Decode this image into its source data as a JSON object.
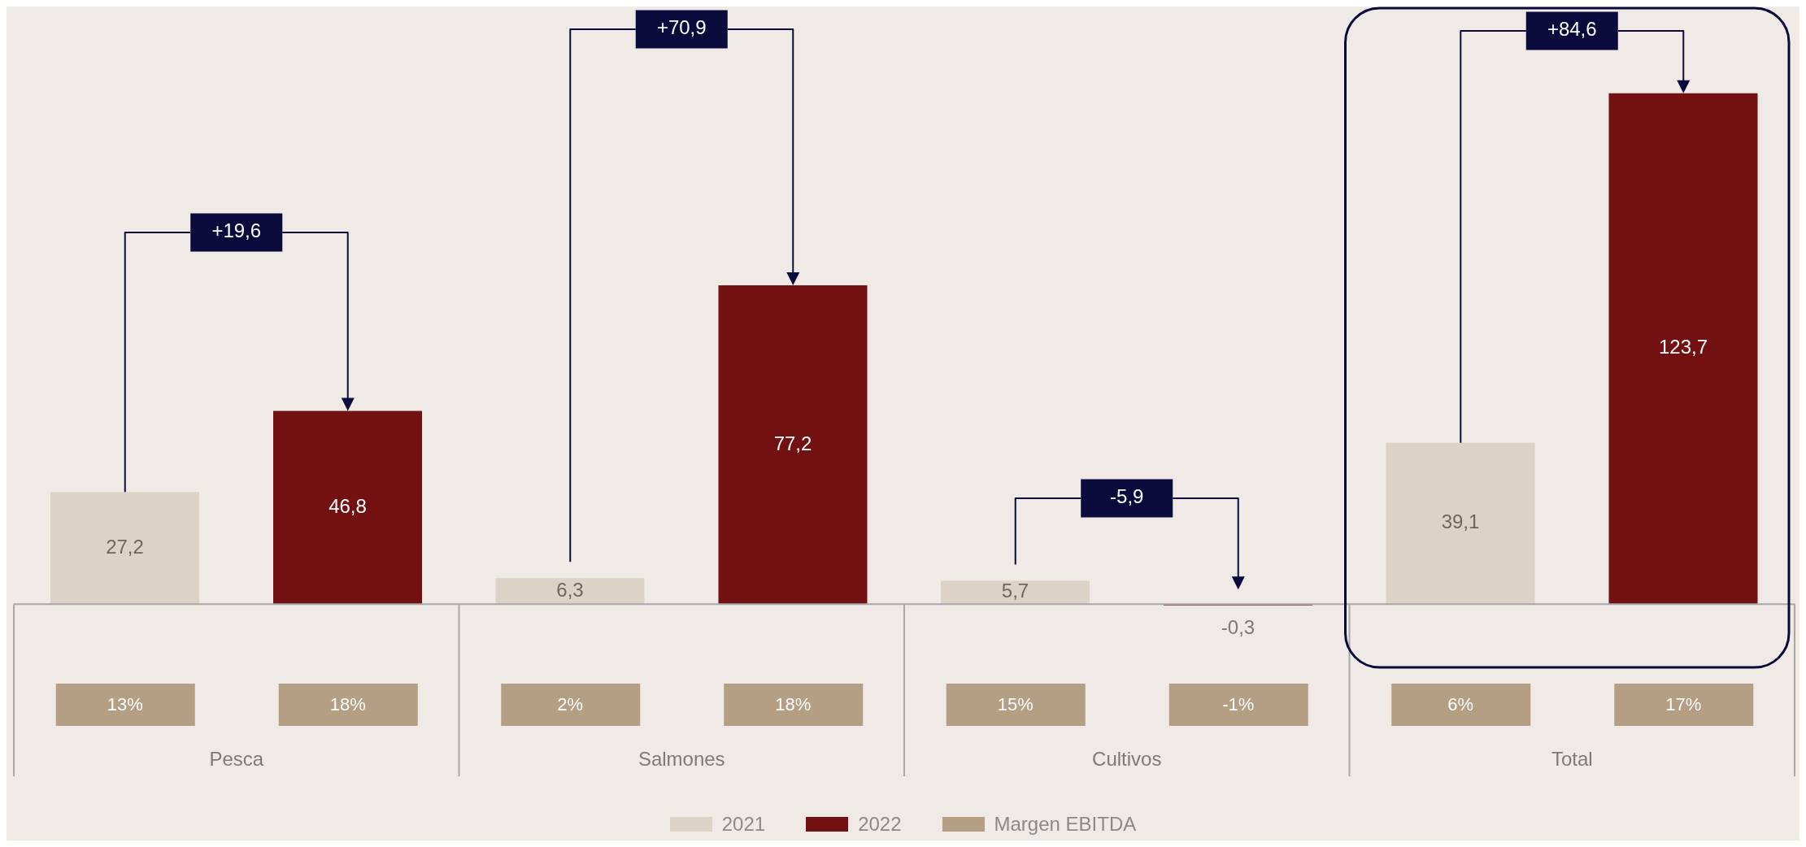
{
  "chart_data": {
    "type": "bar",
    "categories": [
      "Pesca",
      "Salmones",
      "Cultivos",
      "Total"
    ],
    "series": [
      {
        "name": "2021",
        "color": "#dcd3c7",
        "values": [
          27.2,
          6.3,
          5.7,
          39.1
        ],
        "value_labels": [
          "27,2",
          "6,3",
          "5,7",
          "39,1"
        ]
      },
      {
        "name": "2022",
        "color": "#721012",
        "values": [
          46.8,
          77.2,
          -0.3,
          123.7
        ],
        "value_labels": [
          "46,8",
          "77,2",
          "-0,3",
          "123,7"
        ]
      },
      {
        "name": "Margen EBITDA",
        "color": "#b49e84",
        "type": "other",
        "values": [
          null,
          null,
          null,
          null
        ]
      }
    ],
    "legend": "bottom",
    "tick_labels": "x",
    "annotations": [
      "+19,6",
      "13%",
      "18%",
      "+70,9",
      "2%",
      "18%",
      "-5,9",
      "15%",
      "-1%",
      "+84,6",
      "6%",
      "17%"
    ]
  }
}
